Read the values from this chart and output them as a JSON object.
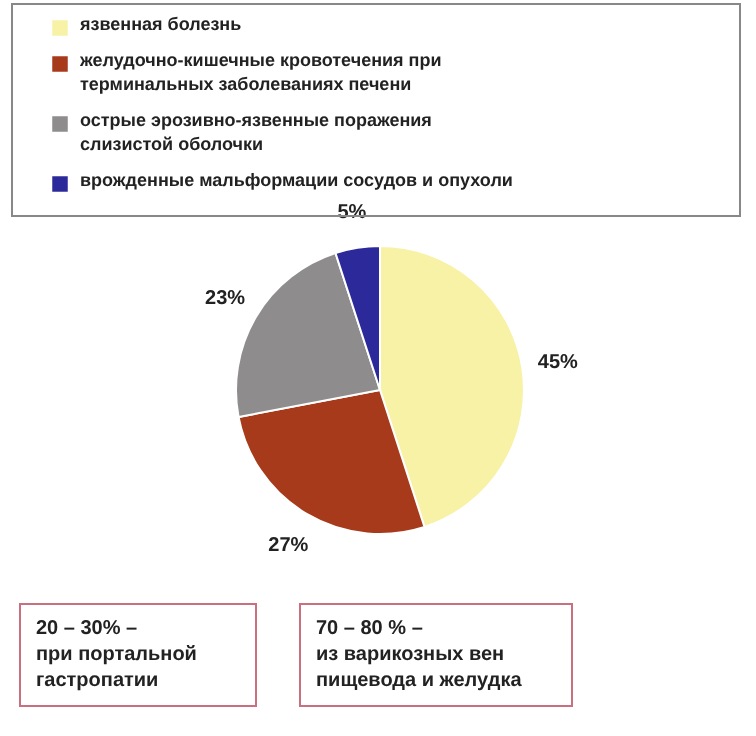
{
  "chart_data": {
    "type": "pie",
    "categories": [
      "язвенная болезнь",
      "желудочно-кишечные кровотечения при терминальных заболеваниях печени",
      "острые эрозивно-язвенные поражения слизистой оболочки",
      "врожденные мальформации сосудов и опухоли"
    ],
    "values": [
      45,
      27,
      23,
      5
    ],
    "colors": [
      "#f7f2a6",
      "#a63a1a",
      "#8e8c8c",
      "#2c2a9a"
    ],
    "value_labels": [
      "45%",
      "27%",
      "23%",
      "5%"
    ],
    "legend": "top",
    "annotations": [
      "20 – 30% – при портальной гастропатии",
      "70 – 80 % – из варикозных вен пищевода и желудка"
    ]
  }
}
